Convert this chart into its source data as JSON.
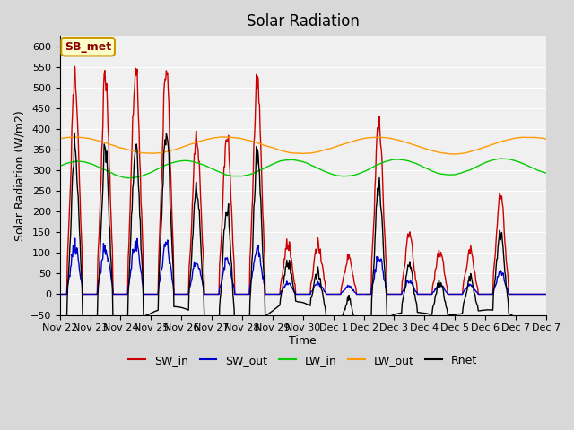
{
  "title": "Solar Radiation",
  "ylabel": "Solar Radiation (W/m2)",
  "xlabel": "Time",
  "ylim": [
    -50,
    625
  ],
  "yticks": [
    -50,
    0,
    50,
    100,
    150,
    200,
    250,
    300,
    350,
    400,
    450,
    500,
    550,
    600
  ],
  "colors": {
    "SW_in": "#cc0000",
    "SW_out": "#0000cc",
    "LW_in": "#00cc00",
    "LW_out": "#ff9900",
    "Rnet": "#000000"
  },
  "legend_labels": [
    "SW_in",
    "SW_out",
    "LW_in",
    "LW_out",
    "Rnet"
  ],
  "annotation_text": "SB_met",
  "annotation_color": "#8b0000",
  "annotation_bg": "#ffffcc",
  "fig_bg": "#d8d8d8",
  "plot_bg": "#f0f0f0",
  "tick_labels": [
    "Nov 22",
    "Nov 23",
    "Nov 24",
    "Nov 25",
    "Nov 26",
    "Nov 27",
    "Nov 28",
    "Nov 29",
    "Nov 30",
    "Dec 1",
    "Dec 2",
    "Dec 3",
    "Dec 4",
    "Dec 5",
    "Dec 6",
    "Dec 7",
    "Dec 7"
  ],
  "lw": 1.0
}
